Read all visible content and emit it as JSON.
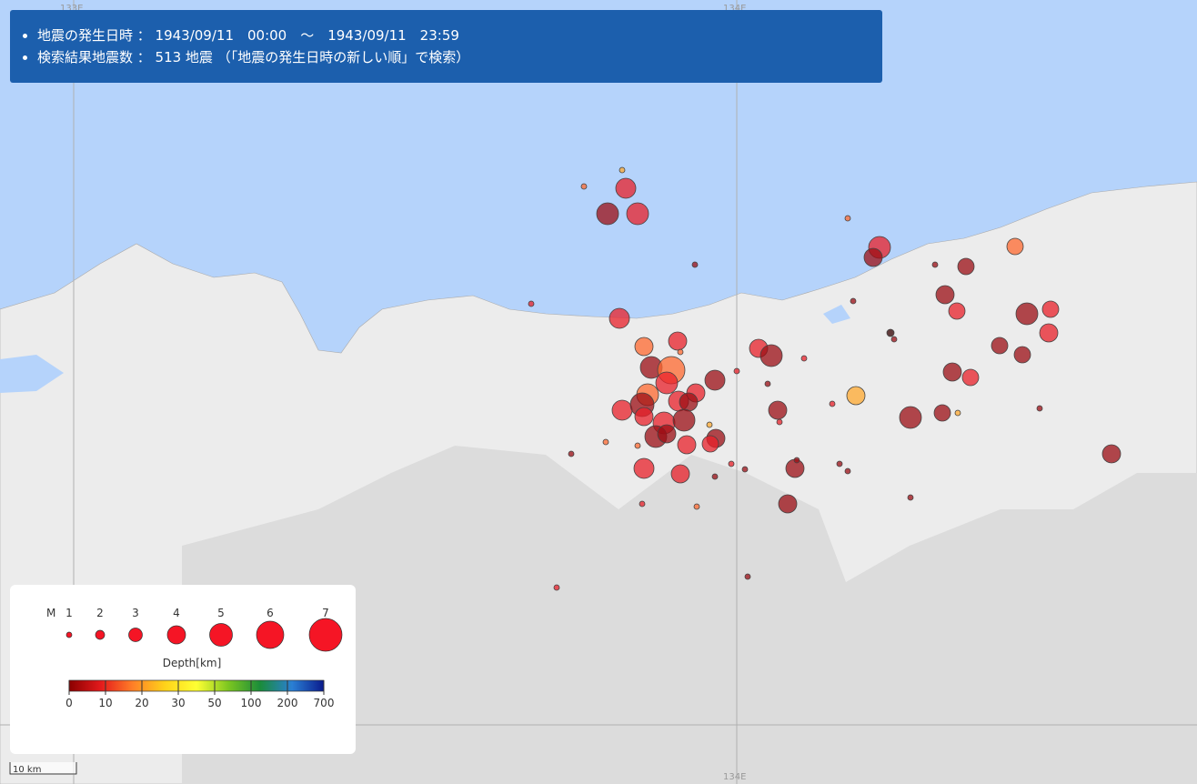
{
  "header": {
    "lines": [
      "地震の発生日時 ： 1943/09/11　00:00　～　1943/09/11　23:59",
      "検索結果地震数 ： 513 地震 （「地震の発生日時の新しい順」で検索）"
    ]
  },
  "map": {
    "grid_labels": [
      "133E",
      "134E",
      "134E"
    ],
    "scale": "10 km"
  },
  "legend": {
    "magnitude_label": "M",
    "magnitudes": [
      "1",
      "2",
      "3",
      "4",
      "5",
      "6",
      "7"
    ],
    "depth_label": "Depth[km]",
    "depths": [
      "0",
      "10",
      "20",
      "30",
      "50",
      "100",
      "200",
      "700"
    ]
  }
}
